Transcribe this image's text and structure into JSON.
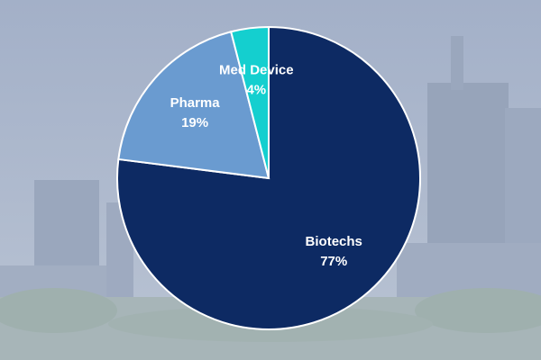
{
  "chart_data": {
    "type": "pie",
    "categories": [
      "Biotechs",
      "Pharma",
      "Med Device"
    ],
    "values": [
      77,
      19,
      4
    ],
    "value_labels": [
      "77%",
      "19%",
      "4%"
    ],
    "colors": [
      "#0d2a63",
      "#6a9bd0",
      "#14cfcf"
    ]
  }
}
